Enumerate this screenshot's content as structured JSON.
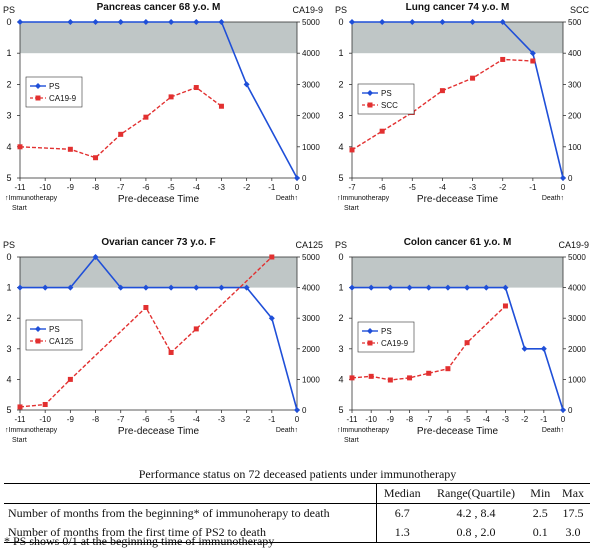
{
  "colors": {
    "ps": "#1f4fd8",
    "marker": "#e23030",
    "band": "#bfc6c6"
  },
  "chart_data": [
    {
      "type": "line",
      "title": "Pancreas cancer  68 y.o.  M",
      "xlabel": "Pre-decease Time",
      "left_axis_label": "PS",
      "right_axis_label": "CA19-9",
      "x_ticks": [
        -11,
        -10,
        -9,
        -8,
        -7,
        -6,
        -5,
        -4,
        -3,
        -2,
        -1,
        0
      ],
      "xlim": [
        -11,
        0
      ],
      "ps_ticks": [
        0,
        1,
        2,
        3,
        4,
        5
      ],
      "ps_lim": [
        0,
        5
      ],
      "marker_ticks": [
        0,
        1000,
        2000,
        3000,
        4000,
        5000
      ],
      "marker_lim": [
        0,
        5000
      ],
      "band": [
        0,
        1
      ],
      "start_label": "↑Immunotherapy",
      "start_sub": "Start",
      "death_label": "Death↑",
      "legend": [
        "PS",
        "CA19-9"
      ],
      "series": [
        {
          "name": "PS",
          "axis": "ps",
          "x": [
            -11,
            -9,
            -8,
            -7,
            -6,
            -5,
            -4,
            -3,
            -2,
            0
          ],
          "values": [
            0,
            0,
            0,
            0,
            0,
            0,
            0,
            0,
            2,
            5
          ]
        },
        {
          "name": "CA19-9",
          "axis": "marker",
          "x": [
            -11,
            -9,
            -8,
            -7,
            -6,
            -5,
            -4,
            -3
          ],
          "values": [
            1000,
            920,
            650,
            1400,
            1950,
            2600,
            2900,
            2300
          ]
        }
      ]
    },
    {
      "type": "line",
      "title": "Lung cancer  74 y.o.  M",
      "xlabel": "Pre-decease Time",
      "left_axis_label": "PS",
      "right_axis_label": "SCC",
      "x_ticks": [
        -7,
        -6,
        -5,
        -4,
        -3,
        -2,
        -1,
        0
      ],
      "xlim": [
        -7,
        0
      ],
      "ps_ticks": [
        0,
        1,
        2,
        3,
        4,
        5
      ],
      "ps_lim": [
        0,
        5
      ],
      "marker_ticks": [
        0,
        100,
        200,
        300,
        400,
        500
      ],
      "marker_lim": [
        0,
        500
      ],
      "band": [
        0,
        1
      ],
      "start_label": "↑Immunotherapy",
      "start_sub": "Start",
      "death_label": "Death↑",
      "legend": [
        "PS",
        "SCC"
      ],
      "series": [
        {
          "name": "PS",
          "axis": "ps",
          "x": [
            -7,
            -6,
            -5,
            -4,
            -3,
            -2,
            -1,
            0
          ],
          "values": [
            0,
            0,
            0,
            0,
            0,
            0,
            1,
            5
          ]
        },
        {
          "name": "SCC",
          "axis": "marker",
          "x": [
            -7,
            -6,
            -5,
            -4,
            -3,
            -2,
            -1
          ],
          "values": [
            90,
            150,
            210,
            280,
            320,
            380,
            375
          ]
        }
      ]
    },
    {
      "type": "line",
      "title": "Ovarian cancer  73 y.o.  F",
      "xlabel": "Pre-decease Time",
      "left_axis_label": "PS",
      "right_axis_label": "CA125",
      "x_ticks": [
        -11,
        -10,
        -9,
        -8,
        -7,
        -6,
        -5,
        -4,
        -3,
        -2,
        -1,
        0
      ],
      "xlim": [
        -11,
        0
      ],
      "ps_ticks": [
        0,
        1,
        2,
        3,
        4,
        5
      ],
      "ps_lim": [
        0,
        5
      ],
      "marker_ticks": [
        0,
        1000,
        2000,
        3000,
        4000,
        5000
      ],
      "marker_lim": [
        0,
        5000
      ],
      "band": [
        0,
        1
      ],
      "start_label": "↑Immunotherapy",
      "start_sub": "Start",
      "death_label": "Death↑",
      "legend": [
        "PS",
        "CA125"
      ],
      "series": [
        {
          "name": "PS",
          "axis": "ps",
          "x": [
            -11,
            -10,
            -9,
            -8,
            -7,
            -6,
            -5,
            -4,
            -3,
            -2,
            -1,
            0
          ],
          "values": [
            1,
            1,
            1,
            0,
            1,
            1,
            1,
            1,
            1,
            1,
            2,
            5
          ]
        },
        {
          "name": "CA125",
          "axis": "marker",
          "x": [
            -11,
            -10,
            -9,
            -6,
            -5,
            -4,
            -1
          ],
          "values": [
            100,
            180,
            1000,
            3350,
            1880,
            2650,
            5000
          ]
        }
      ]
    },
    {
      "type": "line",
      "title": "Colon cancer  61 y.o.  M",
      "xlabel": "Pre-decease Time",
      "left_axis_label": "PS",
      "right_axis_label": "CA19-9",
      "x_ticks": [
        -11,
        -10,
        -9,
        -8,
        -7,
        -6,
        -5,
        -4,
        -3,
        -2,
        -1,
        0
      ],
      "xlim": [
        -11,
        0
      ],
      "ps_ticks": [
        0,
        1,
        2,
        3,
        4,
        5
      ],
      "ps_lim": [
        0,
        5
      ],
      "marker_ticks": [
        0,
        1000,
        2000,
        3000,
        4000,
        5000
      ],
      "marker_lim": [
        0,
        5000
      ],
      "band": [
        0,
        1
      ],
      "start_label": "↑Immunotherapy",
      "start_sub": "Start",
      "death_label": "Death↑",
      "legend": [
        "PS",
        "CA19-9"
      ],
      "series": [
        {
          "name": "PS",
          "axis": "ps",
          "x": [
            -11,
            -10,
            -9,
            -8,
            -7,
            -6,
            -5,
            -4,
            -3,
            -2,
            -1,
            0
          ],
          "values": [
            1,
            1,
            1,
            1,
            1,
            1,
            1,
            1,
            1,
            3,
            3,
            5
          ]
        },
        {
          "name": "CA19-9",
          "axis": "marker",
          "x": [
            -11,
            -10,
            -9,
            -8,
            -7,
            -6,
            -5,
            -3
          ],
          "values": [
            1050,
            1100,
            980,
            1050,
            1200,
            1350,
            2200,
            3400
          ]
        }
      ]
    }
  ],
  "table": {
    "caption": "Performance status on 72 deceased patients under immunotherapy",
    "headers": [
      "",
      "Median",
      "Range(Quartile)",
      "Min",
      "Max"
    ],
    "rows": [
      [
        "Number of months from the beginning* of immunoherapy to death",
        "6.7",
        "4.2 , 8.4",
        "2.5",
        "17.5"
      ],
      [
        "Number of months from the first time of PS2 to death",
        "1.3",
        "0.8 , 2.0",
        "0.1",
        "3.0"
      ]
    ],
    "footnote": "* PS shows 0/1 at the beginning time of immunotherapy"
  }
}
